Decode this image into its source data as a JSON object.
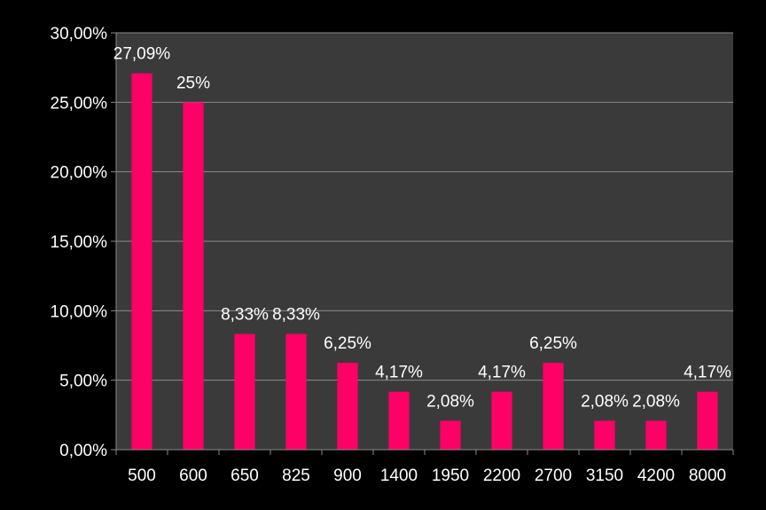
{
  "chart_data": {
    "type": "bar",
    "title": "",
    "xlabel": "",
    "ylabel": "",
    "categories": [
      "500",
      "600",
      "650",
      "825",
      "900",
      "1400",
      "1950",
      "2200",
      "2700",
      "3150",
      "4200",
      "8000"
    ],
    "values": [
      27.09,
      25,
      8.33,
      8.33,
      6.25,
      4.17,
      2.08,
      4.17,
      6.25,
      2.08,
      2.08,
      4.17
    ],
    "data_labels": [
      "27,09%",
      "25%",
      "8,33%",
      "8,33%",
      "6,25%",
      "4,17%",
      "2,08%",
      "4,17%",
      "6,25%",
      "2,08%",
      "2,08%",
      "4,17%"
    ],
    "ylim": [
      0,
      30
    ],
    "yticks": [
      0,
      5,
      10,
      15,
      20,
      25,
      30
    ],
    "ytick_labels": [
      "0,00%",
      "5,00%",
      "10,00%",
      "15,00%",
      "20,00%",
      "25,00%",
      "30,00%"
    ],
    "grid": true,
    "legend": "none",
    "colors": {
      "background": "#000000",
      "plot_area": "#3a3a3a",
      "bar": "#ff0066",
      "gridline": "#8a8a8a",
      "text": "#ffffff"
    }
  }
}
